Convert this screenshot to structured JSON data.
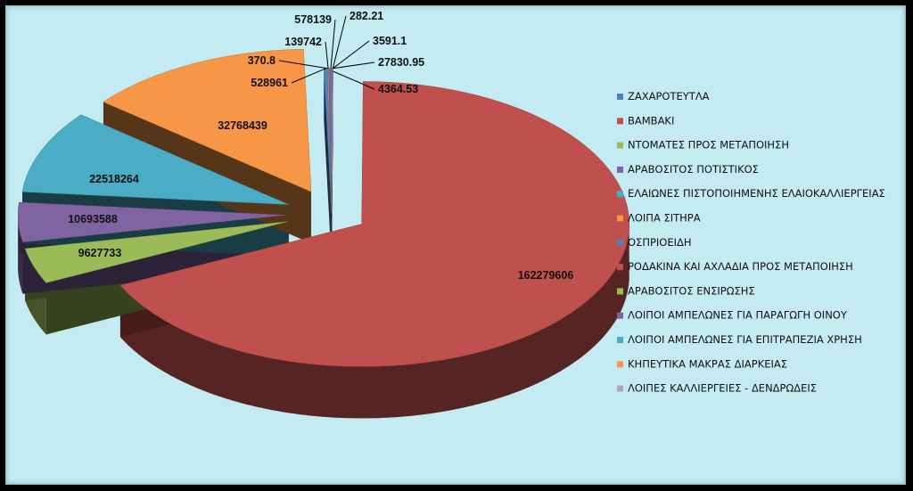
{
  "chart_data": {
    "type": "pie",
    "style": "3d-exploded",
    "legend_position": "right",
    "categories": [
      "ΖΑΧΑΡΟΤΕΥΤΛΑ",
      "ΒΑΜΒΑΚΙ",
      "ΝΤΟΜΑΤΕΣ ΠΡΟΣ ΜΕΤΑΠΟΙΗΣΗ",
      "ΑΡΑΒΟΣΙΤΟΣ ΠΟΤΙΣΤΙΚΟΣ",
      "ΕΛΑΙΩΝΕΣ ΠΙΣΤΟΠΟΙΗΜΕΝΗΣ ΕΛΑΙΟΚΑΛΛΙΕΡΓΕΙΑΣ",
      "ΛΟΙΠΑ ΣΙΤΗΡΑ",
      "ΟΣΠΡΙΟΕΙΔΗ",
      "ΡΟΔΑΚΙΝΑ ΚΑΙ ΑΧΛΑΔΙΑ ΠΡΟΣ ΜΕΤΑΠΟΙΗΣΗ",
      "ΑΡΑΒΟΣΙΤΟΣ ΕΝΣΙΡΩΣΗΣ",
      "ΛΟΙΠΟΙ ΑΜΠΕΛΩΝΕΣ ΓΙΑ ΠΑΡΑΓΩΓΗ ΟΙΝΟΥ",
      "ΛΟΙΠΟΙ ΑΜΠΕΛΩΝΕΣ ΓΙΑ ΕΠΙΤΡΑΠΕΖΙΑ ΧΡΗΣΗ",
      "ΚΗΠΕΥΤΙΚΑ ΜΑΚΡΑΣ ΔΙΑΡΚΕΙΑΣ",
      "ΛΟΙΠΕΣ ΚΑΛΛΙΕΡΓΕΙΕΣ - ΔΕΝΔΡΩΔΕΙΣ"
    ],
    "values": [
      4364.53,
      162279606,
      9627733,
      10693588,
      22518264,
      32768439,
      528961,
      370.8,
      139742,
      578139,
      282.21,
      3591.1,
      27830.95
    ],
    "labels": [
      "4364.53",
      "162279606",
      "9627733",
      "10693588",
      "22518264",
      "32768439",
      "528961",
      "370.8",
      "139742",
      "578139",
      "282.21",
      "3591.1",
      "27830.95"
    ],
    "colors": [
      "#4f81bd",
      "#c0504d",
      "#9bbb59",
      "#8064a2",
      "#4bacc6",
      "#f79646",
      "#4f81bd",
      "#c0504d",
      "#9bbb59",
      "#8064a2",
      "#4bacc6",
      "#f79646",
      "#b3a2c7"
    ]
  }
}
